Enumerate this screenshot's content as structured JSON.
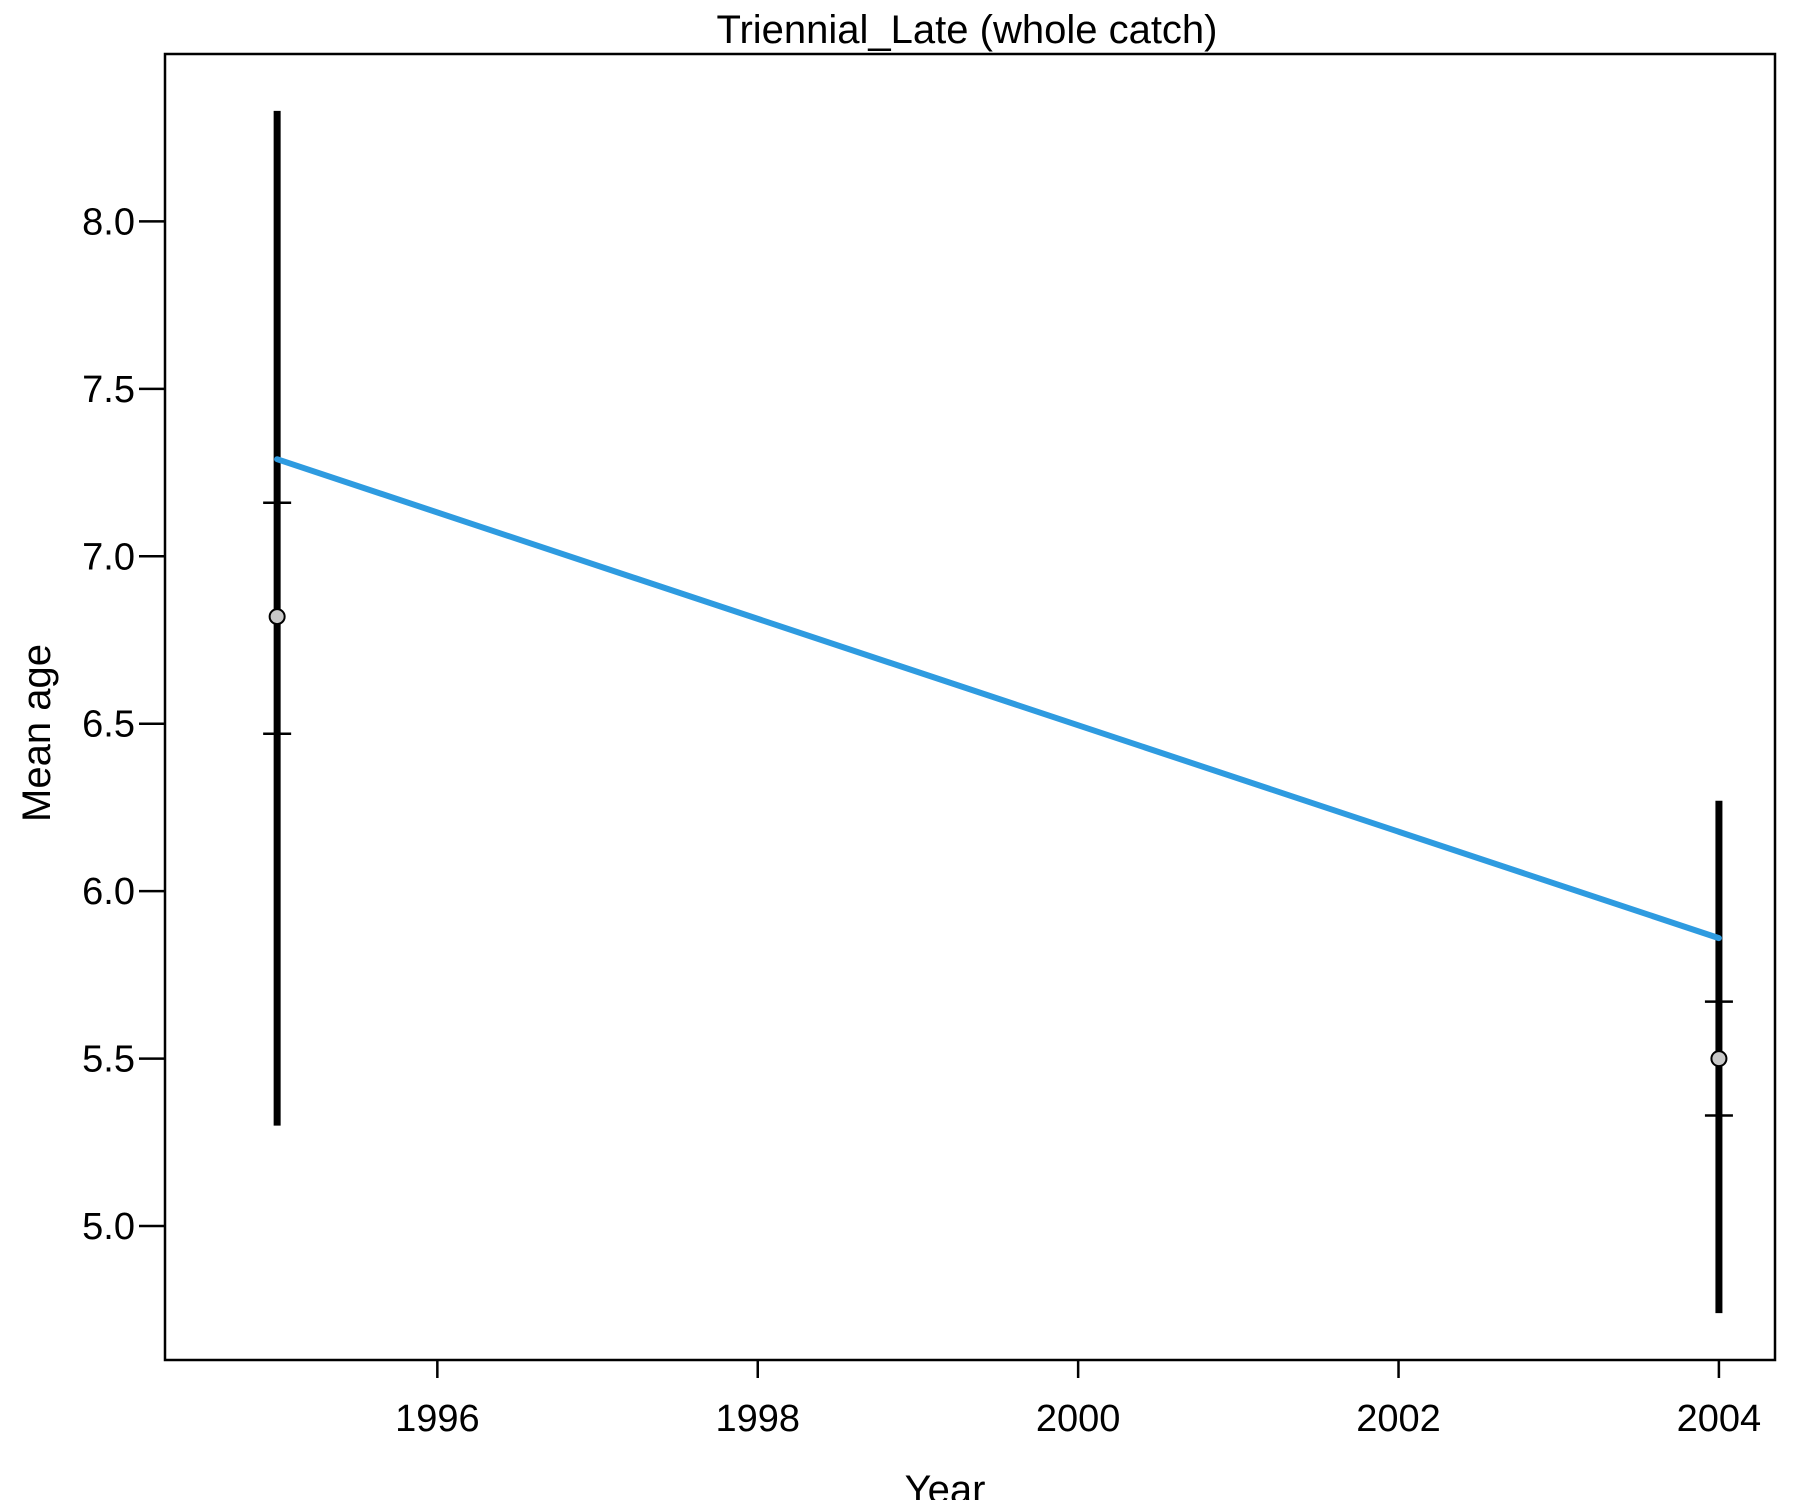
{
  "chart_data": {
    "type": "line",
    "title": "Triennial_Late (whole catch)",
    "xlabel": "Year",
    "ylabel": "Mean age",
    "xlim": [
      1994.3,
      2004.35
    ],
    "ylim": [
      4.6,
      8.5
    ],
    "xticks": [
      1996,
      1998,
      2000,
      2002,
      2004
    ],
    "xtick_labels": [
      "1996",
      "1998",
      "2000",
      "2002",
      "2004"
    ],
    "yticks": [
      5.0,
      5.5,
      6.0,
      6.5,
      7.0,
      7.5,
      8.0
    ],
    "ytick_labels": [
      "5.0",
      "5.5",
      "6.0",
      "6.5",
      "7.0",
      "7.5",
      "8.0"
    ],
    "grid": false,
    "observed": {
      "x": [
        1995,
        2004
      ],
      "y": [
        6.82,
        5.5
      ],
      "lower": [
        5.3,
        4.74
      ],
      "upper": [
        8.33,
        6.27
      ],
      "inner_lower": [
        6.47,
        5.33
      ],
      "inner_upper": [
        7.16,
        5.67
      ]
    },
    "expected": {
      "x": [
        1995,
        2004
      ],
      "y": [
        7.29,
        5.86
      ]
    },
    "colors": {
      "expected_line": "#2E9BE0",
      "interval": "#000000",
      "point_fill": "#C8C8C8"
    }
  }
}
